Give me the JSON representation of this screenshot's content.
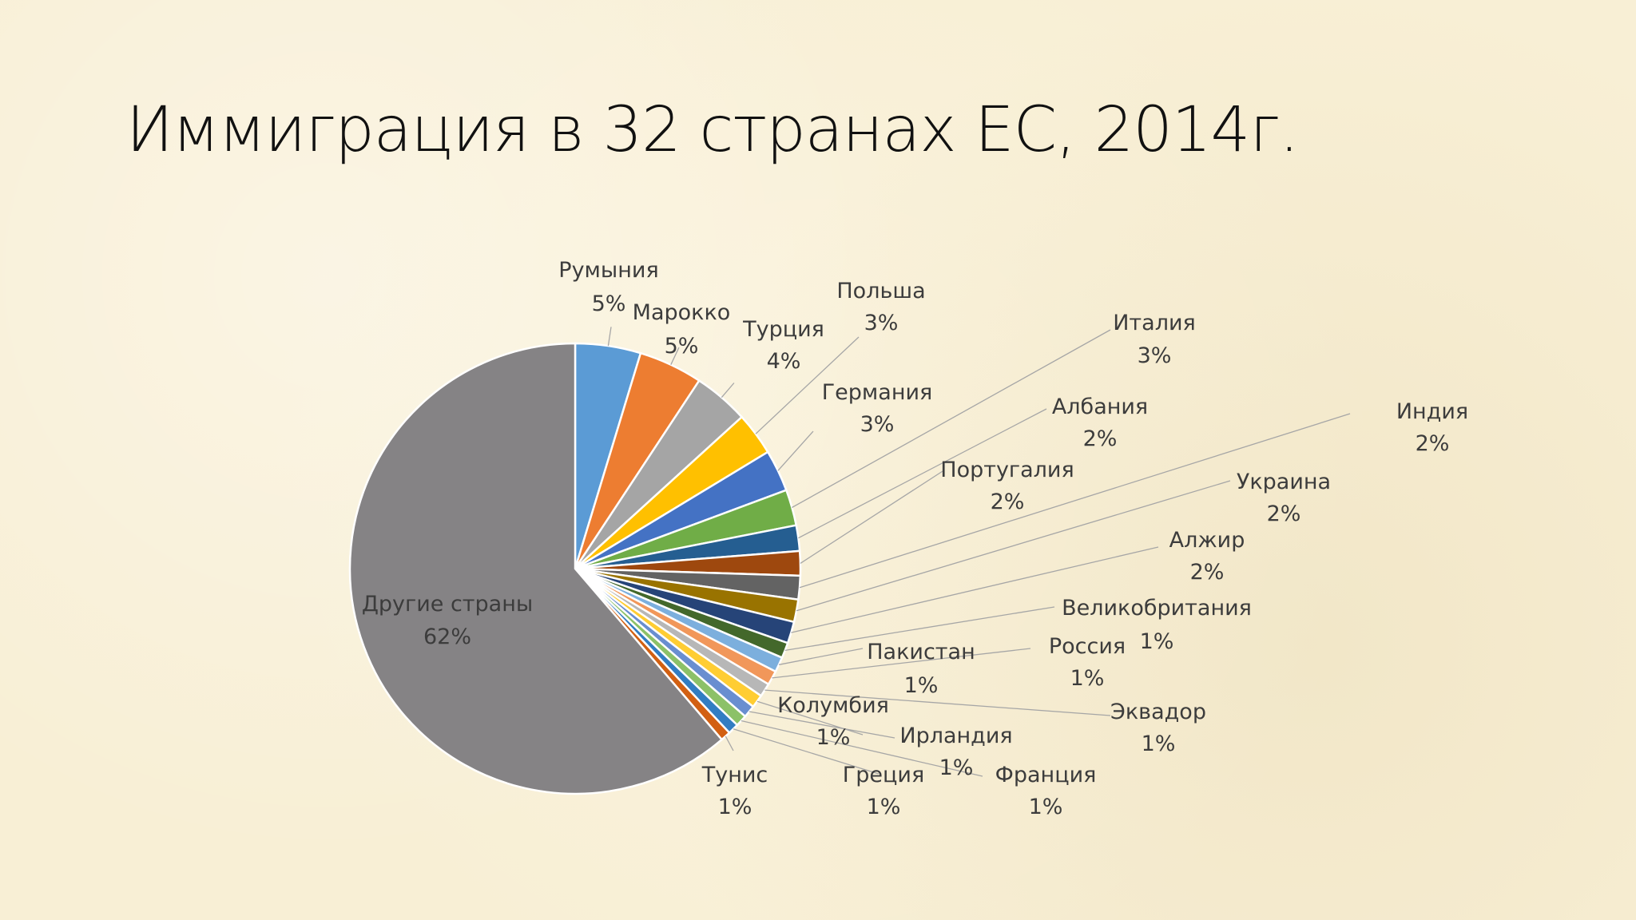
{
  "slide": {
    "title": "Иммиграция в 32 странах ЕС, 2014г."
  },
  "chart_data": {
    "type": "pie",
    "title": "Иммиграция в 32 странах ЕС, 2014г.",
    "unit": "%",
    "slices": [
      {
        "name": "Румыния",
        "value": 5,
        "label": "5%",
        "color": "#5b9bd5"
      },
      {
        "name": "Марокко",
        "value": 5,
        "label": "5%",
        "color": "#ed7d31"
      },
      {
        "name": "Турция",
        "value": 4,
        "label": "4%",
        "color": "#a5a5a5"
      },
      {
        "name": "Польша",
        "value": 3,
        "label": "3%",
        "color": "#ffc000"
      },
      {
        "name": "Германия",
        "value": 3,
        "label": "3%",
        "color": "#4472c4"
      },
      {
        "name": "Италия",
        "value": 3,
        "label": "3%",
        "color": "#70ad47"
      },
      {
        "name": "Албания",
        "value": 2,
        "label": "2%",
        "color": "#255e91"
      },
      {
        "name": "Португалия",
        "value": 2,
        "label": "2%",
        "color": "#9e480e"
      },
      {
        "name": "Индия",
        "value": 2,
        "label": "2%",
        "color": "#636363"
      },
      {
        "name": "Украина",
        "value": 2,
        "label": "2%",
        "color": "#997300"
      },
      {
        "name": "Алжир",
        "value": 2,
        "label": "2%",
        "color": "#264478"
      },
      {
        "name": "Великобритания",
        "value": 1,
        "label": "1%",
        "color": "#43682b"
      },
      {
        "name": "Пакистан",
        "value": 1,
        "label": "1%",
        "color": "#7cafdd"
      },
      {
        "name": "Россия",
        "value": 1,
        "label": "1%",
        "color": "#f1975a"
      },
      {
        "name": "Эквадор",
        "value": 1,
        "label": "1%",
        "color": "#b7b7b7"
      },
      {
        "name": "Колумбия",
        "value": 1,
        "label": "1%",
        "color": "#ffcd33"
      },
      {
        "name": "Ирландия",
        "value": 1,
        "label": "1%",
        "color": "#698ed0"
      },
      {
        "name": "Франция",
        "value": 1,
        "label": "1%",
        "color": "#8cc168"
      },
      {
        "name": "Греция",
        "value": 1,
        "label": "1%",
        "color": "#327dc2"
      },
      {
        "name": "Тунис",
        "value": 1,
        "label": "1%",
        "color": "#d26012"
      },
      {
        "name": "Другие страны",
        "value": 62,
        "label": "62%",
        "color": "#858385"
      }
    ]
  }
}
